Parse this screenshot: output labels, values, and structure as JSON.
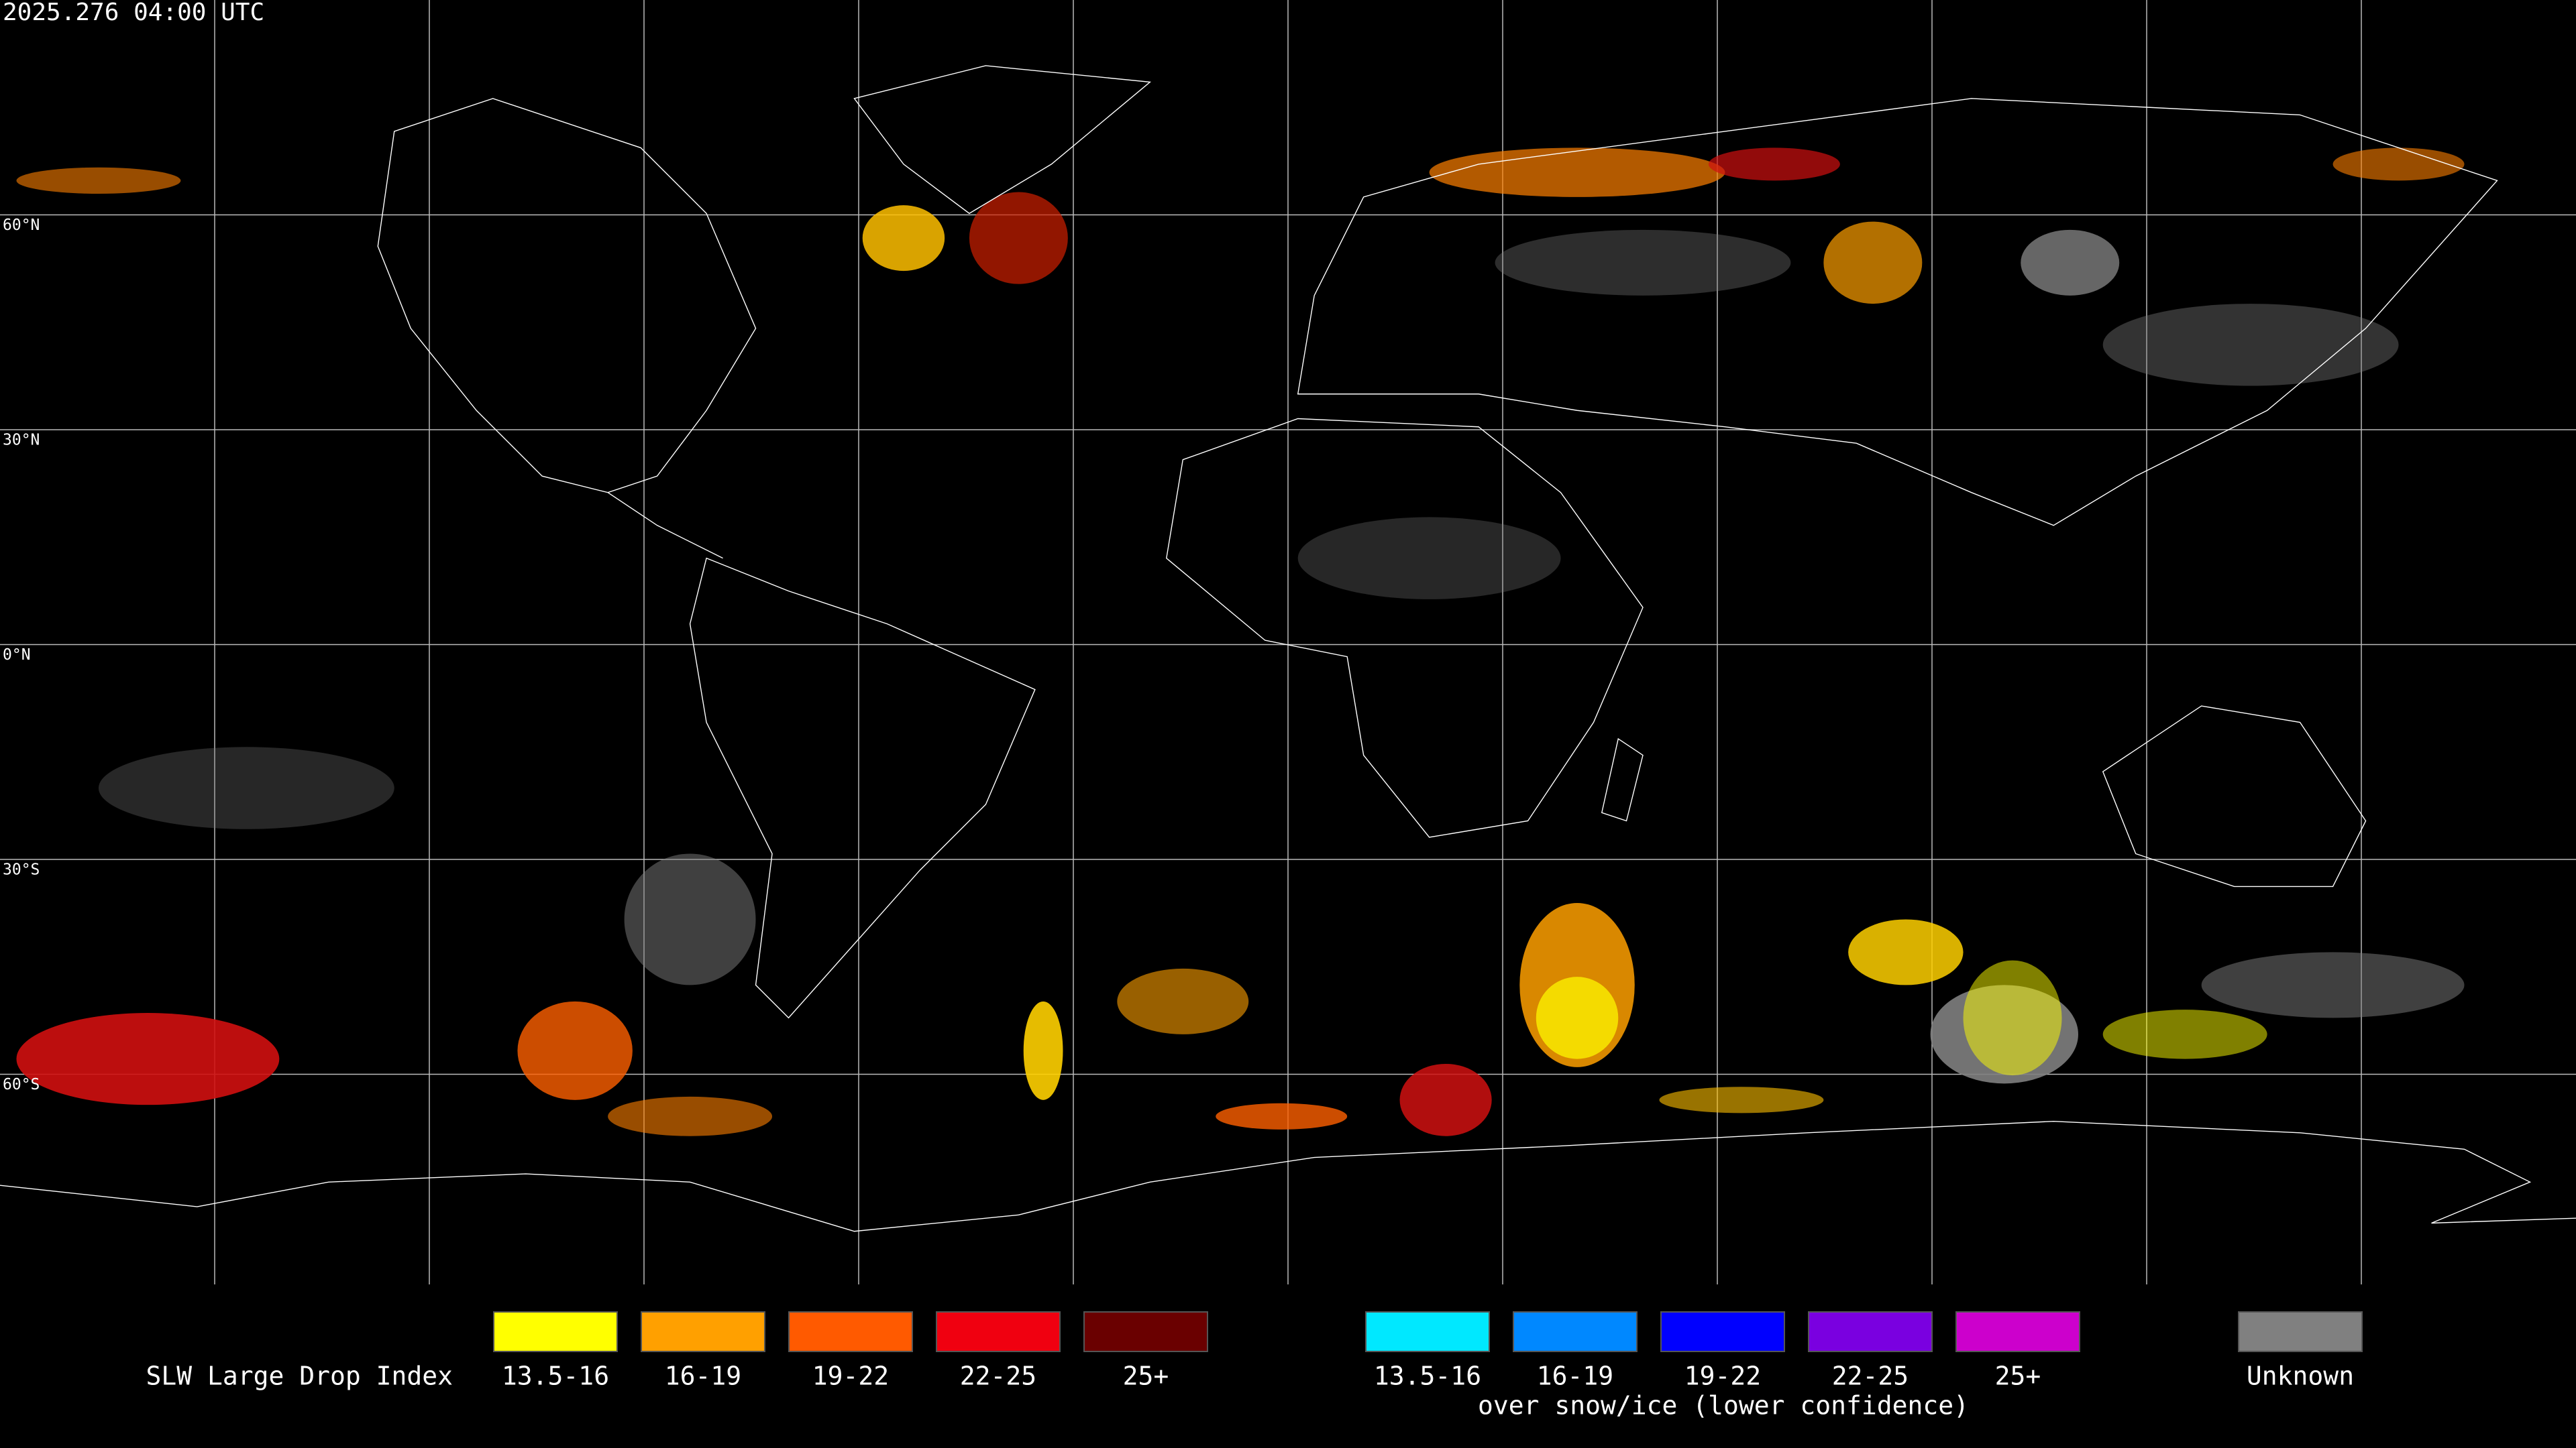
{
  "timestamp": "2025.276 04:00 UTC",
  "latitude_labels": [
    "60°N",
    "30°N",
    "0°N",
    "30°S",
    "60°S"
  ],
  "legend": {
    "title": "SLW Large Drop Index",
    "items": [
      {
        "label": "13.5-16",
        "color": "#ffff00"
      },
      {
        "label": "16-19",
        "color": "#ffa000"
      },
      {
        "label": "19-22",
        "color": "#ff5a00"
      },
      {
        "label": "22-25",
        "color": "#f00010"
      },
      {
        "label": "25+",
        "color": "#6a0000"
      }
    ],
    "snow_items": [
      {
        "label": "13.5-16",
        "color": "#00e8ff"
      },
      {
        "label": "16-19",
        "color": "#0088ff"
      },
      {
        "label": "19-22",
        "color": "#0000ff"
      },
      {
        "label": "22-25",
        "color": "#7a00e0"
      },
      {
        "label": "25+",
        "color": "#cc00cc"
      }
    ],
    "snow_note": "over snow/ice (lower confidence)",
    "unknown": {
      "label": "Unknown",
      "color": "#808080"
    }
  }
}
